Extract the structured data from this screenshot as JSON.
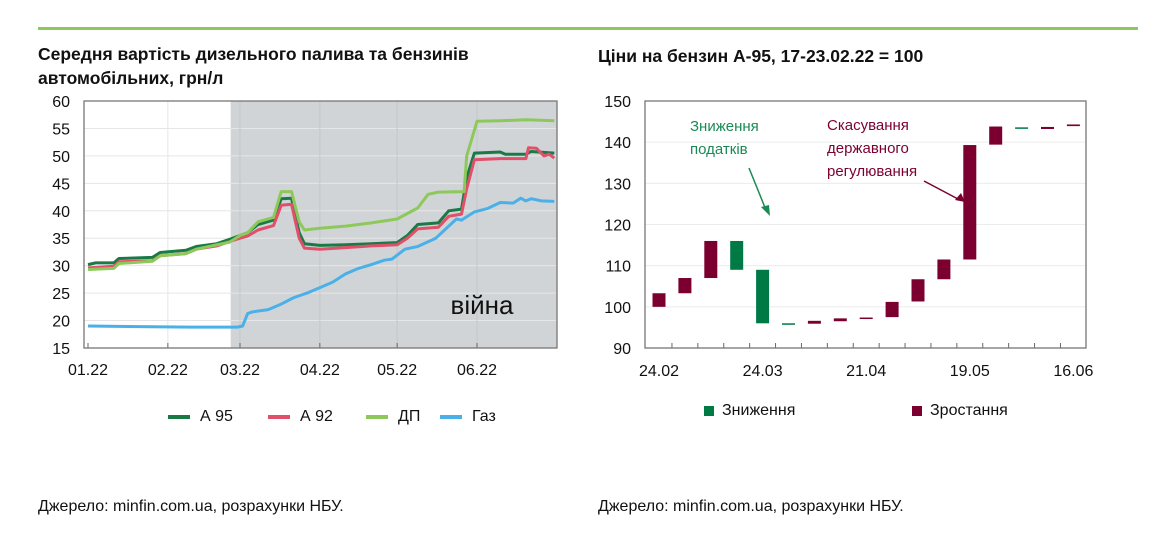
{
  "left": {
    "title_line1": "Середня вартість дизельного палива та бензинів",
    "title_line2": "автомобільних, грн/л",
    "source": "Джерело: minfin.com.ua, розрахунки НБУ."
  },
  "right": {
    "title": "Ціни на бензин А-95, 17-23.02.22 = 100",
    "source": "Джерело: minfin.com.ua, розрахунки НБУ."
  },
  "chart_data": [
    {
      "type": "line",
      "title": "Середня вартість дизельного палива та бензинів автомобільних, грн/л",
      "xlabel": "",
      "ylabel": "грн/л",
      "ylim": [
        15,
        60
      ],
      "yticks": [
        15,
        20,
        25,
        30,
        35,
        40,
        45,
        50,
        55,
        60
      ],
      "x_unit": "day of 2022 (0 = 01.01)",
      "xlim": [
        -2,
        182
      ],
      "xticks": [
        {
          "day": 0,
          "label": "01.22"
        },
        {
          "day": 31,
          "label": "02.22"
        },
        {
          "day": 59,
          "label": "03.22"
        },
        {
          "day": 90,
          "label": "04.22"
        },
        {
          "day": 120,
          "label": "05.22"
        },
        {
          "day": 151,
          "label": "06.22"
        }
      ],
      "shaded_region": {
        "from_day": 55,
        "to_day": 182,
        "label": "війна",
        "color": "#d1d4d7"
      },
      "legend_position": "bottom",
      "series": [
        {
          "name": "А 95",
          "color": "#1a7a45",
          "points": [
            [
              0,
              30.2
            ],
            [
              3,
              30.5
            ],
            [
              10,
              30.5
            ],
            [
              12,
              31.3
            ],
            [
              25,
              31.5
            ],
            [
              28,
              32.4
            ],
            [
              38,
              32.8
            ],
            [
              42,
              33.5
            ],
            [
              50,
              34
            ],
            [
              55,
              34.8
            ],
            [
              59,
              35.5
            ],
            [
              62,
              36
            ],
            [
              66,
              37.5
            ],
            [
              72,
              38.3
            ],
            [
              75,
              42.2
            ],
            [
              79,
              42.3
            ],
            [
              82,
              36
            ],
            [
              84,
              34
            ],
            [
              90,
              33.7
            ],
            [
              100,
              33.8
            ],
            [
              110,
              34
            ],
            [
              120,
              34.2
            ],
            [
              124,
              35.5
            ],
            [
              128,
              37.5
            ],
            [
              136,
              37.8
            ],
            [
              140,
              40
            ],
            [
              145,
              40.3
            ],
            [
              147,
              46
            ],
            [
              150,
              50.5
            ],
            [
              160,
              50.7
            ],
            [
              162,
              50.3
            ],
            [
              170,
              50.3
            ],
            [
              172,
              50.8
            ],
            [
              181,
              50.5
            ]
          ]
        },
        {
          "name": "А 92",
          "color": "#e0506a",
          "points": [
            [
              0,
              29.6
            ],
            [
              10,
              29.9
            ],
            [
              12,
              30.7
            ],
            [
              25,
              30.9
            ],
            [
              28,
              31.8
            ],
            [
              38,
              32.2
            ],
            [
              42,
              33
            ],
            [
              50,
              33.6
            ],
            [
              55,
              34.4
            ],
            [
              59,
              35
            ],
            [
              62,
              35.4
            ],
            [
              66,
              36.5
            ],
            [
              72,
              37.3
            ],
            [
              75,
              41
            ],
            [
              79,
              41.2
            ],
            [
              82,
              35
            ],
            [
              84,
              33.2
            ],
            [
              90,
              33
            ],
            [
              100,
              33.3
            ],
            [
              110,
              33.6
            ],
            [
              120,
              33.8
            ],
            [
              124,
              35
            ],
            [
              128,
              36.7
            ],
            [
              136,
              37
            ],
            [
              140,
              39
            ],
            [
              145,
              39.4
            ],
            [
              147,
              44
            ],
            [
              150,
              49.3
            ],
            [
              160,
              49.5
            ],
            [
              170,
              49.5
            ],
            [
              171,
              51.5
            ],
            [
              174,
              51.4
            ],
            [
              177,
              50
            ],
            [
              179,
              50.3
            ],
            [
              181,
              49.6
            ]
          ]
        },
        {
          "name": "ДП",
          "color": "#8dc95a",
          "points": [
            [
              0,
              29.3
            ],
            [
              10,
              29.5
            ],
            [
              12,
              30.4
            ],
            [
              25,
              30.8
            ],
            [
              28,
              31.8
            ],
            [
              38,
              32.2
            ],
            [
              42,
              33
            ],
            [
              50,
              33.8
            ],
            [
              55,
              34.3
            ],
            [
              59,
              35.5
            ],
            [
              62,
              36
            ],
            [
              66,
              38
            ],
            [
              72,
              38.8
            ],
            [
              75,
              43.5
            ],
            [
              79,
              43.5
            ],
            [
              82,
              38
            ],
            [
              84,
              36.5
            ],
            [
              90,
              36.8
            ],
            [
              100,
              37.2
            ],
            [
              110,
              37.8
            ],
            [
              120,
              38.5
            ],
            [
              124,
              39.5
            ],
            [
              128,
              40.5
            ],
            [
              132,
              43
            ],
            [
              136,
              43.4
            ],
            [
              146,
              43.5
            ],
            [
              147,
              50
            ],
            [
              151,
              56.3
            ],
            [
              160,
              56.4
            ],
            [
              170,
              56.6
            ],
            [
              181,
              56.4
            ]
          ]
        },
        {
          "name": "Газ",
          "color": "#4ab0e8",
          "points": [
            [
              0,
              19
            ],
            [
              20,
              18.9
            ],
            [
              40,
              18.8
            ],
            [
              58,
              18.8
            ],
            [
              60,
              19
            ],
            [
              62,
              21.3
            ],
            [
              64,
              21.6
            ],
            [
              70,
              22
            ],
            [
              75,
              23
            ],
            [
              80,
              24.2
            ],
            [
              85,
              25
            ],
            [
              90,
              26
            ],
            [
              95,
              27
            ],
            [
              100,
              28.5
            ],
            [
              105,
              29.5
            ],
            [
              110,
              30.2
            ],
            [
              115,
              31
            ],
            [
              118,
              31.2
            ],
            [
              123,
              33
            ],
            [
              128,
              33.5
            ],
            [
              135,
              35
            ],
            [
              143,
              38.5
            ],
            [
              145,
              38.3
            ],
            [
              150,
              39.8
            ],
            [
              155,
              40.4
            ],
            [
              160,
              41.5
            ],
            [
              165,
              41.4
            ],
            [
              168,
              42.3
            ],
            [
              170,
              41.8
            ],
            [
              172,
              42.2
            ],
            [
              176,
              41.8
            ],
            [
              181,
              41.7
            ]
          ]
        }
      ]
    },
    {
      "type": "bar",
      "subtype": "waterfall",
      "title": "Ціни на бензин А-95, 17-23.02.22 = 100",
      "ylim": [
        90,
        150
      ],
      "yticks": [
        90,
        100,
        110,
        120,
        130,
        140,
        150
      ],
      "categories": [
        "24.02",
        "",
        "",
        "",
        "24.03",
        "",
        "",
        "",
        "21.04",
        "",
        "",
        "",
        "19.05",
        "",
        "",
        "",
        "16.06"
      ],
      "bars": [
        [
          100,
          103.3
        ],
        [
          103.3,
          107
        ],
        [
          107,
          116
        ],
        [
          116,
          109
        ],
        [
          109,
          96
        ],
        [
          96,
          95.8
        ],
        [
          95.9,
          96.6
        ],
        [
          96.5,
          97.2
        ],
        [
          97.1,
          97.4
        ],
        [
          97.5,
          101.2
        ],
        [
          101.3,
          106.7
        ],
        [
          106.7,
          111.5
        ],
        [
          111.5,
          139.3
        ],
        [
          139.4,
          143.8
        ],
        [
          143.6,
          143.3
        ],
        [
          143.2,
          143.7
        ],
        [
          143.9,
          144.3
        ]
      ],
      "colors": {
        "down": "#007a45",
        "up": "#7b0030"
      },
      "annotations": [
        {
          "text_lines": [
            "Зниження",
            "податків"
          ],
          "color": "#1a8a55",
          "points_to_category": 4
        },
        {
          "text_lines": [
            "Скасування",
            "державного",
            "регулювання"
          ],
          "color": "#7b0030",
          "points_to_category": 12
        }
      ],
      "legend": [
        {
          "name": "Зниження",
          "color": "#007a45"
        },
        {
          "name": "Зростання",
          "color": "#7b0030"
        }
      ],
      "legend_position": "bottom"
    }
  ]
}
